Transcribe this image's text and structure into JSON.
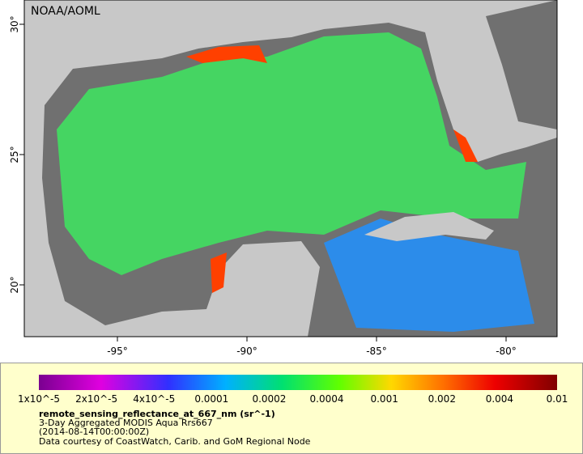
{
  "map": {
    "source": "NOAA/AOML",
    "lon_ticks": [
      "-95°",
      "-90°",
      "-85°",
      "-80°"
    ],
    "lat_ticks": [
      "30°",
      "25°",
      "20°"
    ]
  },
  "colorbar": {
    "ticks": [
      "1x10^-5",
      "2x10^-5",
      "4x10^-5",
      "0.0001",
      "0.0002",
      "0.0004",
      "0.001",
      "0.002",
      "0.004",
      "0.01"
    ]
  },
  "legend": {
    "variable": "remote_sensing_reflectance_at_667_nm (sr^-1)",
    "description": "3-Day Aggregated MODIS Aqua Rrs667",
    "time": "(2014-08-14T00:00:00Z)",
    "credit": "Data courtesy of CoastWatch, Carib. and GoM Regional Node"
  }
}
